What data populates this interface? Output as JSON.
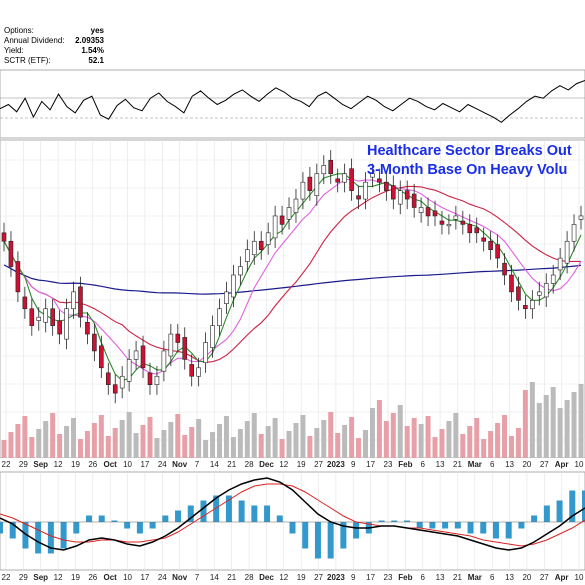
{
  "info": {
    "rows": [
      {
        "label": "Options:",
        "value": "yes"
      },
      {
        "label": "Annual Dividend:",
        "value": "2.09353"
      },
      {
        "label": "Yield:",
        "value": "1.54%"
      },
      {
        "label": "SCTR (ETF):",
        "value": "52.1"
      }
    ]
  },
  "annotation": {
    "line1": "Healthcare Sector Breaks Out",
    "line2": "3-Month Base On Heavy Volu"
  },
  "colors": {
    "up_candle": "#ffffff",
    "down_candle": "#cc1133",
    "ma_short": "#2e8b2e",
    "ma_mid": "#e060e0",
    "ma_long_red": "#cc2244",
    "ma_200": "#1a1a8c",
    "volume_up": "#bbbbbb",
    "volume_down": "#e8a0a8",
    "macd_line": "#000000",
    "macd_signal": "#dd2222",
    "histogram": "#3399cc",
    "annotation": "#1a2ee8"
  },
  "chart_data": {
    "type": "candlestick",
    "x_axis_labels": [
      {
        "text": "22",
        "bold": false
      },
      {
        "text": "29",
        "bold": false
      },
      {
        "text": "Sep",
        "bold": true
      },
      {
        "text": "12",
        "bold": false
      },
      {
        "text": "19",
        "bold": false
      },
      {
        "text": "26",
        "bold": false
      },
      {
        "text": "Oct",
        "bold": true
      },
      {
        "text": "10",
        "bold": false
      },
      {
        "text": "17",
        "bold": false
      },
      {
        "text": "24",
        "bold": false
      },
      {
        "text": "Nov",
        "bold": true
      },
      {
        "text": "7",
        "bold": false
      },
      {
        "text": "14",
        "bold": false
      },
      {
        "text": "21",
        "bold": false
      },
      {
        "text": "28",
        "bold": false
      },
      {
        "text": "Dec",
        "bold": true
      },
      {
        "text": "12",
        "bold": false
      },
      {
        "text": "19",
        "bold": false
      },
      {
        "text": "27",
        "bold": false
      },
      {
        "text": "2023",
        "bold": true
      },
      {
        "text": "9",
        "bold": false
      },
      {
        "text": "17",
        "bold": false
      },
      {
        "text": "23",
        "bold": false
      },
      {
        "text": "Feb",
        "bold": true
      },
      {
        "text": "6",
        "bold": false
      },
      {
        "text": "13",
        "bold": false
      },
      {
        "text": "21",
        "bold": false
      },
      {
        "text": "Mar",
        "bold": true
      },
      {
        "text": "6",
        "bold": false
      },
      {
        "text": "13",
        "bold": false
      },
      {
        "text": "20",
        "bold": false
      },
      {
        "text": "27",
        "bold": false
      },
      {
        "text": "Apr",
        "bold": true
      },
      {
        "text": "10",
        "bold": false
      }
    ],
    "price_close": [
      134,
      131,
      128,
      126,
      124,
      125,
      126,
      124,
      123,
      126,
      128,
      125,
      123,
      121,
      119,
      117,
      116,
      118,
      120,
      121,
      119,
      117,
      118,
      121,
      123,
      122,
      120,
      118,
      119,
      122,
      124,
      126,
      128,
      130,
      131,
      133,
      134,
      133,
      135,
      137,
      136,
      138,
      139,
      141,
      140,
      142,
      143,
      142,
      141,
      142,
      140,
      139,
      141,
      142,
      141,
      140,
      139,
      140,
      139,
      138,
      138,
      137,
      137,
      136,
      136,
      137,
      136,
      135,
      135,
      134,
      133,
      132,
      130,
      128,
      127,
      126,
      127,
      128,
      129,
      130,
      132,
      134,
      136,
      137
    ],
    "rsi": [
      48,
      52,
      45,
      58,
      40,
      55,
      47,
      62,
      50,
      44,
      56,
      60,
      42,
      38,
      51,
      57,
      49,
      46,
      58,
      63,
      55,
      50,
      44,
      60,
      65,
      58,
      52,
      56,
      62,
      66,
      60,
      55,
      62,
      68,
      64,
      58,
      55,
      50,
      60,
      64,
      58,
      52,
      48,
      54,
      60,
      56,
      50,
      46,
      52,
      58,
      55,
      50,
      47,
      53,
      49,
      45,
      52,
      48,
      44,
      40,
      35,
      42,
      48,
      55,
      60,
      58,
      65,
      70,
      66,
      72,
      75
    ],
    "macd_line": [
      0.2,
      -0.1,
      -0.6,
      -1.0,
      -1.3,
      -1.4,
      -1.2,
      -0.9,
      -0.8,
      -0.9,
      -1.1,
      -1.2,
      -1.0,
      -0.7,
      -0.3,
      0.2,
      0.7,
      1.2,
      1.6,
      1.9,
      2.1,
      2.2,
      2.0,
      1.6,
      1.0,
      0.4,
      0.0,
      -0.2,
      -0.3,
      -0.3,
      -0.2,
      -0.2,
      -0.3,
      -0.4,
      -0.5,
      -0.6,
      -0.7,
      -0.9,
      -1.1,
      -1.3,
      -1.4,
      -1.3,
      -1.0,
      -0.6,
      -0.2,
      0.3,
      0.7
    ],
    "macd_signal": [
      0.4,
      0.2,
      -0.1,
      -0.4,
      -0.7,
      -0.9,
      -1.0,
      -1.0,
      -0.9,
      -0.9,
      -1.0,
      -1.0,
      -0.9,
      -0.8,
      -0.5,
      -0.1,
      0.3,
      0.7,
      1.1,
      1.5,
      1.8,
      1.9,
      1.9,
      1.8,
      1.5,
      1.1,
      0.7,
      0.3,
      0.0,
      -0.1,
      -0.2,
      -0.2,
      -0.3,
      -0.3,
      -0.4,
      -0.5,
      -0.6,
      -0.7,
      -0.9,
      -1.0,
      -1.1,
      -1.2,
      -1.1,
      -0.9,
      -0.6,
      -0.3,
      0.1
    ]
  }
}
